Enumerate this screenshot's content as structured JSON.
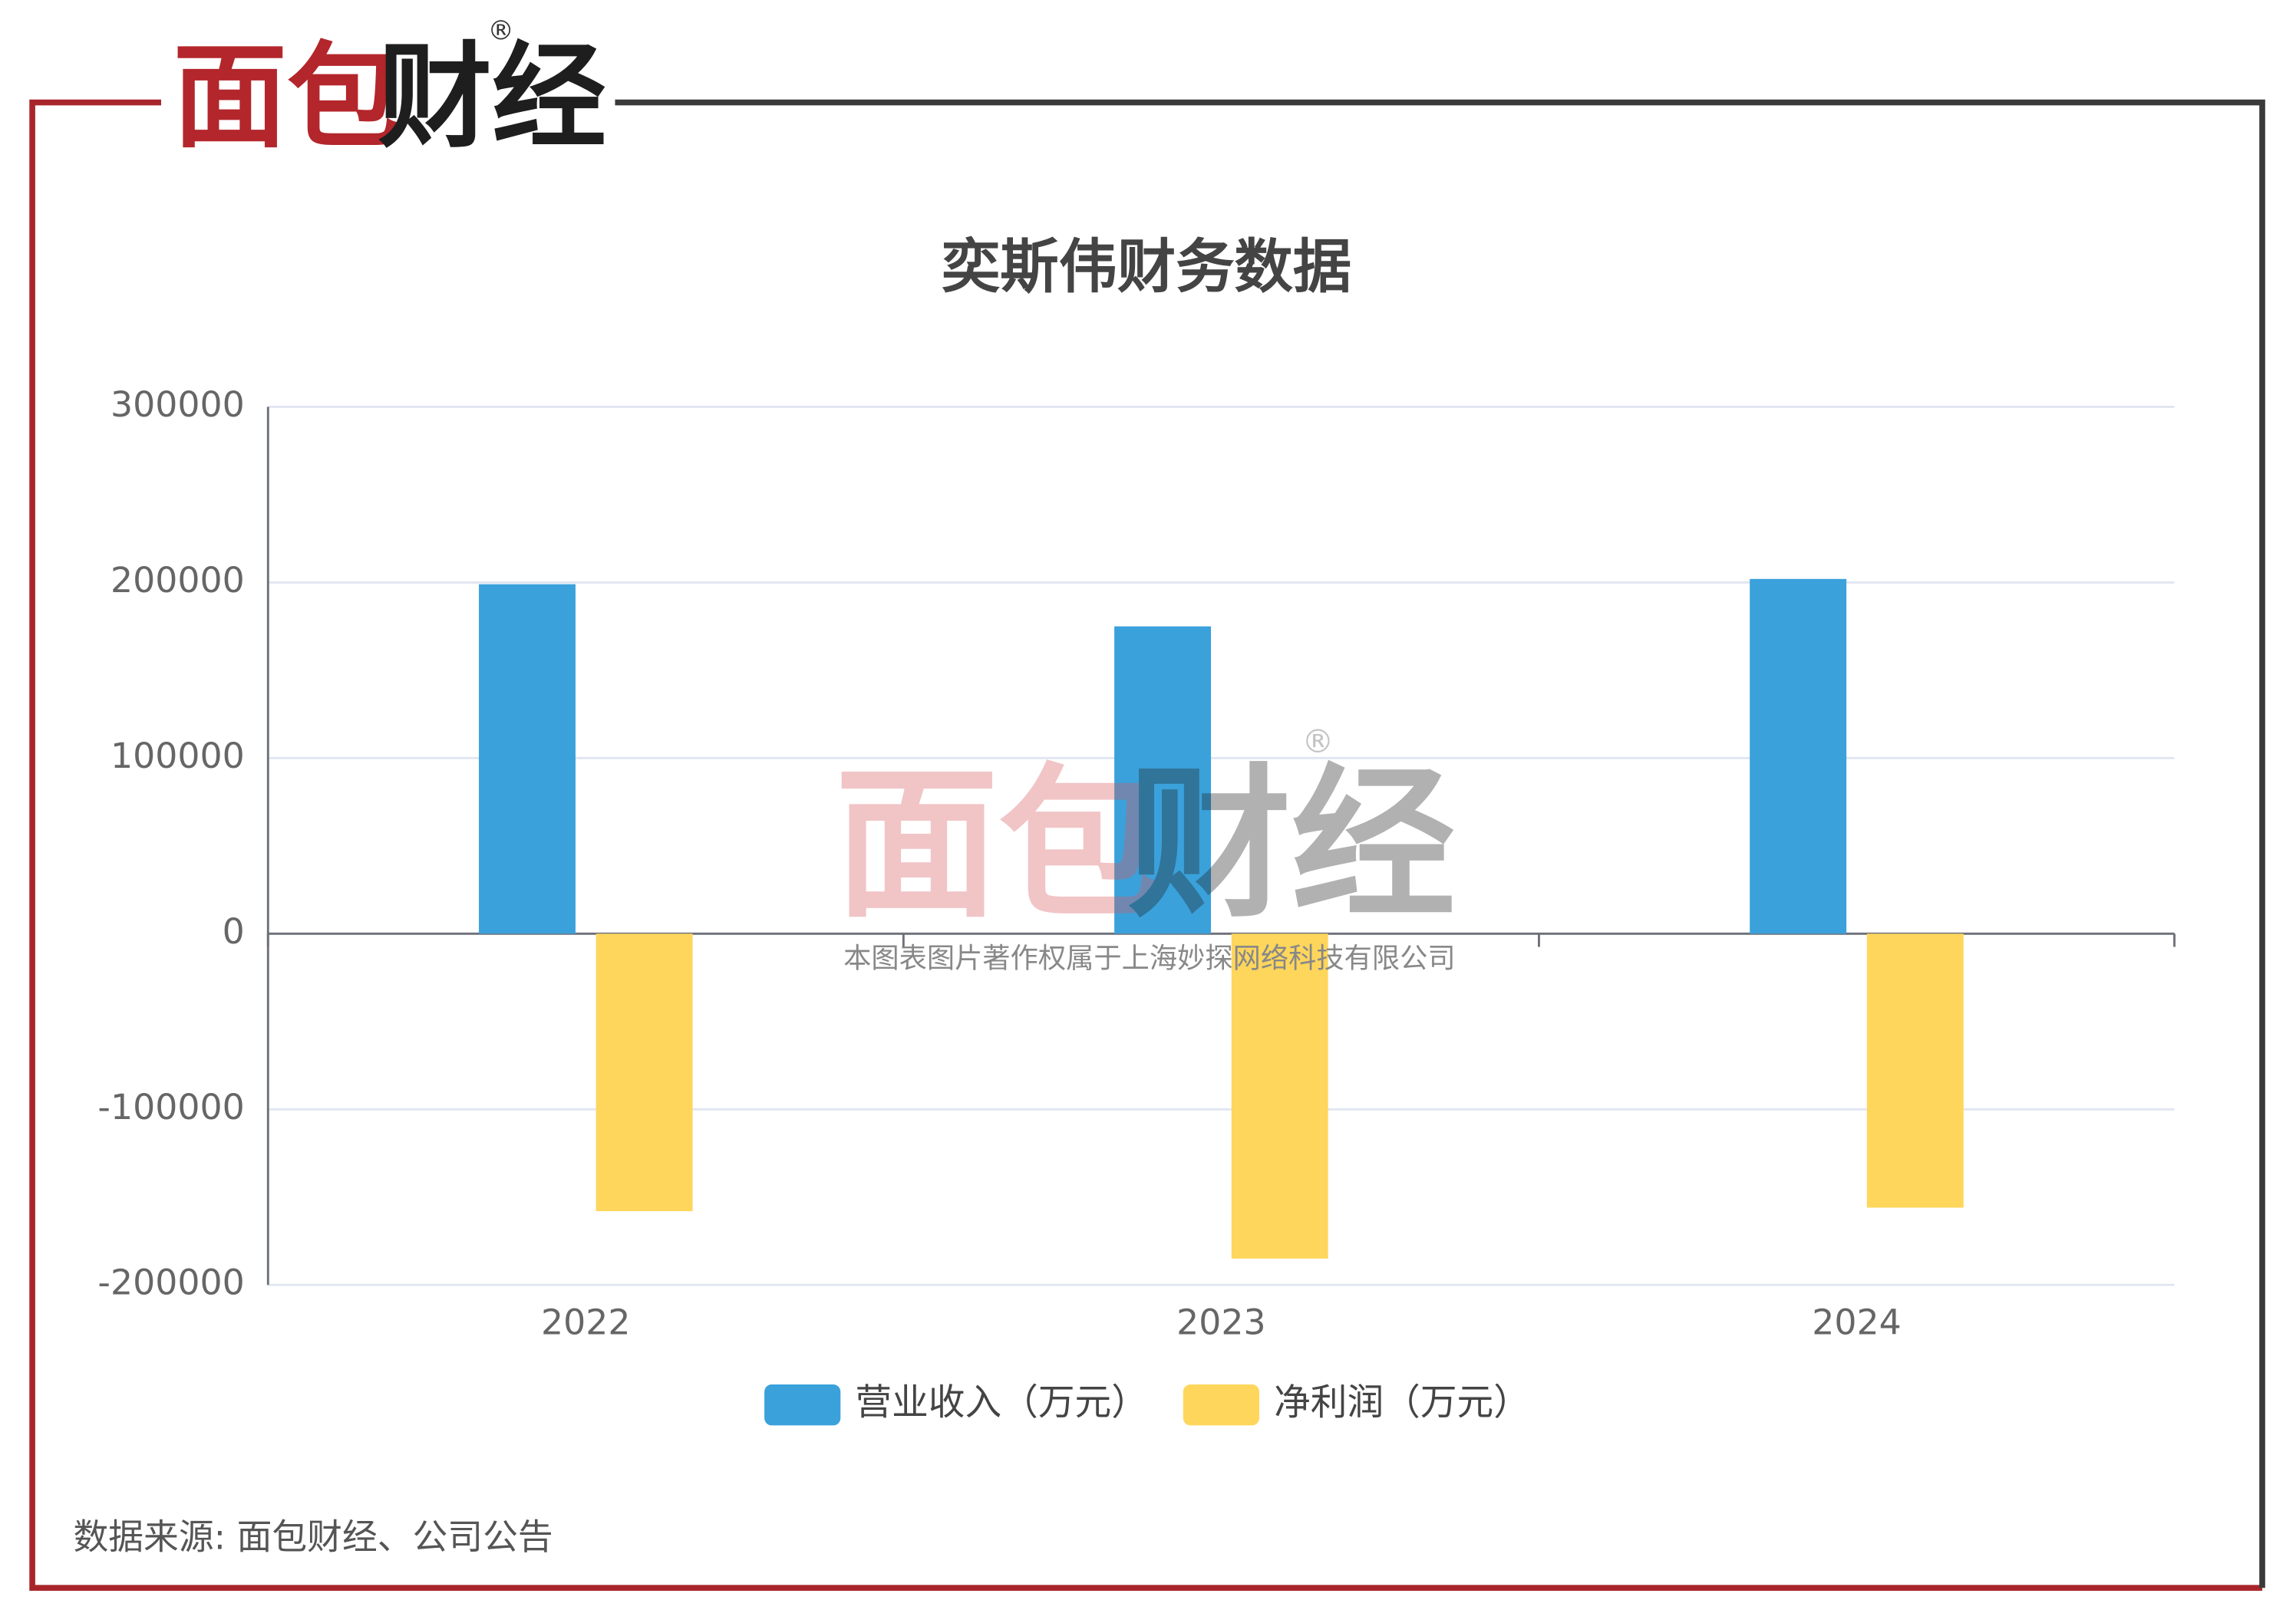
{
  "logo": {
    "left": "面包",
    "right": "财经",
    "mark": "®"
  },
  "watermark": {
    "left": "面包",
    "right": "财经",
    "mark": "®",
    "notice": "本图表图片著作权属于上海妙探网络科技有限公司"
  },
  "source": "数据来源: 面包财经、公司公告",
  "chart_data": {
    "type": "bar",
    "title": "奕斯伟财务数据",
    "categories": [
      "2022",
      "2023",
      "2024"
    ],
    "series": [
      {
        "name": "营业收入（万元）",
        "color": "#3aa1db",
        "values": [
          199000,
          175000,
          202000
        ]
      },
      {
        "name": "净利润（万元）",
        "color": "#ffd65c",
        "values": [
          -158000,
          -185000,
          -156000
        ]
      }
    ],
    "ylim": [
      -200000,
      300000
    ],
    "yticks": [
      -200000,
      -100000,
      0,
      100000,
      200000,
      300000
    ],
    "grid": true,
    "legend": "bottom"
  }
}
